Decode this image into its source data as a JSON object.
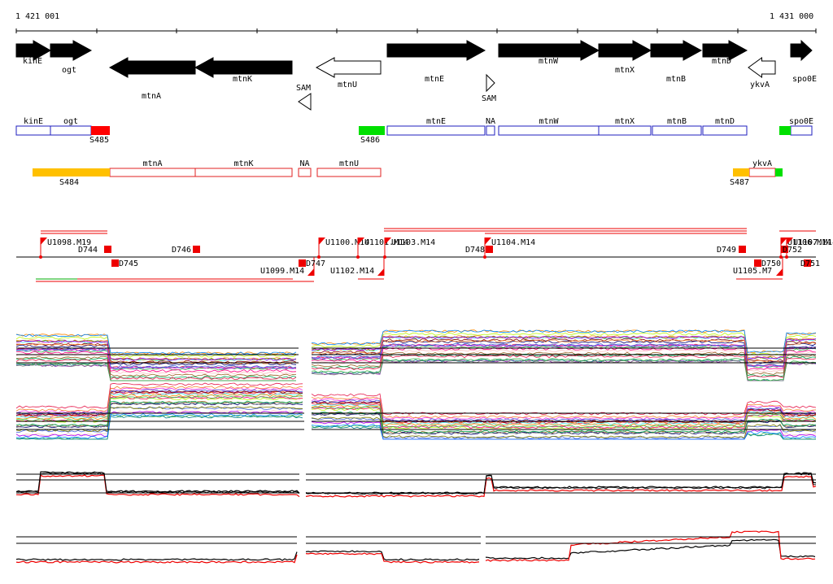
{
  "ruler": {
    "start_label": "1 421 001",
    "end_label": "1 431 000"
  },
  "genes": [
    {
      "name": "kinE",
      "strand": "+",
      "filled": true
    },
    {
      "name": "ogt",
      "strand": "+",
      "filled": true
    },
    {
      "name": "mtnA",
      "strand": "-",
      "filled": true
    },
    {
      "name": "mtnK",
      "strand": "-",
      "filled": true
    },
    {
      "name": "SAM",
      "strand": "-",
      "filled": false
    },
    {
      "name": "mtnU",
      "strand": "-",
      "filled": false
    },
    {
      "name": "mtnE",
      "strand": "+",
      "filled": true
    },
    {
      "name": "SAM",
      "strand": "+",
      "filled": false
    },
    {
      "name": "mtnW",
      "strand": "+",
      "filled": true
    },
    {
      "name": "mtnX",
      "strand": "+",
      "filled": true
    },
    {
      "name": "mtnB",
      "strand": "+",
      "filled": true
    },
    {
      "name": "mtnD",
      "strand": "+",
      "filled": true
    },
    {
      "name": "ykvA",
      "strand": "-",
      "filled": false
    },
    {
      "name": "spo0E",
      "strand": "+",
      "filled": true
    }
  ],
  "plus_transcripts": [
    "kinE",
    "ogt",
    "mtnE",
    "NA",
    "mtnW",
    "mtnX",
    "mtnB",
    "mtnD",
    "spo0E"
  ],
  "plus_segments": [
    "S485",
    "S486"
  ],
  "minus_transcripts": [
    "mtnA",
    "mtnK",
    "NA",
    "mtnU",
    "ykvA"
  ],
  "minus_segments": [
    "S484",
    "S487"
  ],
  "upshifts": [
    "U1098.M19",
    "U1100.M14",
    "U1101.M14",
    "U1103.M14",
    "U1104.M14",
    "U1099.M14",
    "U1102.M14",
    "U1105.M7",
    "U1106.M14",
    "U1107.M14"
  ],
  "downshifts": [
    "D744",
    "D745",
    "D746",
    "D747",
    "D748",
    "D749",
    "D750",
    "D751",
    "D752"
  ],
  "colors": {
    "gene_fill": "#000000",
    "plus_box": "#1f1fbf",
    "minus_box": "#e02020",
    "segment_red": "#ff0000",
    "segment_green": "#00e000",
    "segment_orange": "#ffc000"
  }
}
